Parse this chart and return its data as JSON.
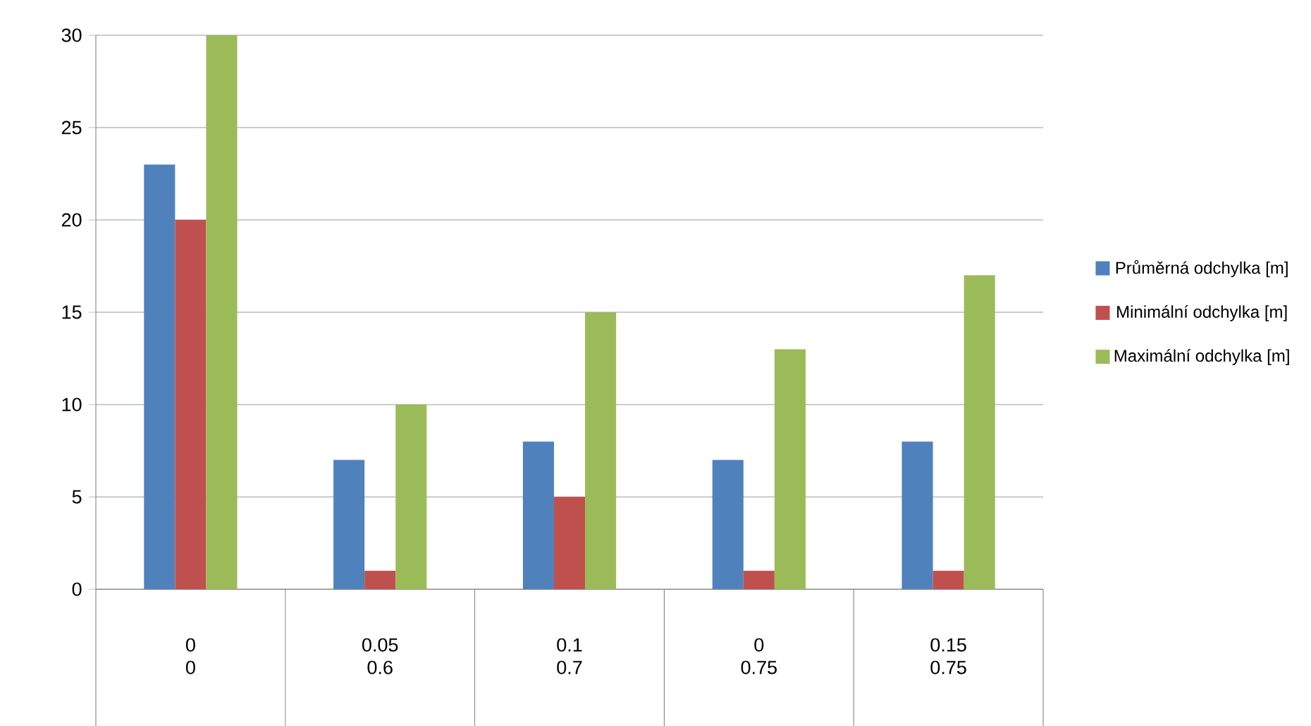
{
  "chart_data": {
    "type": "bar",
    "categories": [
      "0\n0",
      "0.05\n0.6",
      "0.1\n0.7",
      "0\n0.75",
      "0.15\n0.75"
    ],
    "series": [
      {
        "name": "Průměrná odchylka [m]",
        "color": "#4f81bd",
        "values": [
          23,
          7,
          8,
          7,
          8
        ]
      },
      {
        "name": "Minimální odchylka [m]",
        "color": "#c0504d",
        "values": [
          20,
          1,
          5,
          1,
          1
        ]
      },
      {
        "name": "Maximální odchylka [m]",
        "color": "#9bbb59",
        "values": [
          30,
          10,
          15,
          13,
          17
        ]
      }
    ],
    "ylim": [
      0,
      30
    ],
    "yticks": [
      0,
      5,
      10,
      15,
      20,
      25,
      30
    ],
    "grid": "y",
    "legend": "right"
  }
}
